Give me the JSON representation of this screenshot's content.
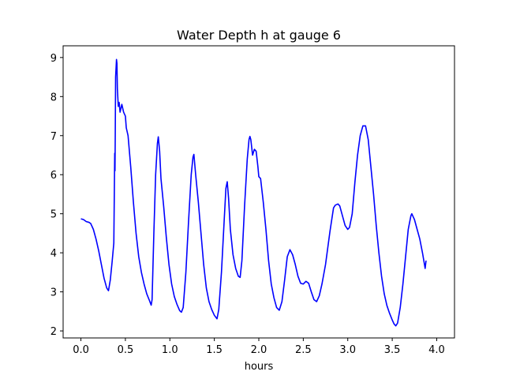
{
  "chart_data": {
    "type": "line",
    "title": "Water Depth h at gauge 6",
    "xlabel": "hours",
    "ylabel": "",
    "xlim": [
      -0.2,
      4.2
    ],
    "ylim": [
      1.82,
      9.3
    ],
    "xticks": [
      0.0,
      0.5,
      1.0,
      1.5,
      2.0,
      2.5,
      3.0,
      3.5,
      4.0
    ],
    "xtick_labels": [
      "0.0",
      "0.5",
      "1.0",
      "1.5",
      "2.0",
      "2.5",
      "3.0",
      "3.5",
      "4.0"
    ],
    "yticks": [
      2,
      3,
      4,
      5,
      6,
      7,
      8,
      9
    ],
    "ytick_labels": [
      "2",
      "3",
      "4",
      "5",
      "6",
      "7",
      "8",
      "9"
    ],
    "grid": false,
    "legend": "none",
    "series": [
      {
        "color": "#0000ff",
        "points": [
          [
            0.0,
            4.87
          ],
          [
            0.03,
            4.85
          ],
          [
            0.06,
            4.8
          ],
          [
            0.09,
            4.78
          ],
          [
            0.11,
            4.75
          ],
          [
            0.14,
            4.6
          ],
          [
            0.17,
            4.35
          ],
          [
            0.2,
            4.05
          ],
          [
            0.23,
            3.7
          ],
          [
            0.26,
            3.35
          ],
          [
            0.29,
            3.1
          ],
          [
            0.31,
            3.03
          ],
          [
            0.33,
            3.3
          ],
          [
            0.35,
            3.75
          ],
          [
            0.37,
            4.25
          ],
          [
            0.38,
            6.55
          ],
          [
            0.383,
            6.1
          ],
          [
            0.386,
            7.0
          ],
          [
            0.39,
            8.5
          ],
          [
            0.4,
            8.95
          ],
          [
            0.405,
            8.85
          ],
          [
            0.41,
            8.2
          ],
          [
            0.42,
            7.75
          ],
          [
            0.43,
            7.85
          ],
          [
            0.44,
            7.6
          ],
          [
            0.46,
            7.8
          ],
          [
            0.48,
            7.6
          ],
          [
            0.5,
            7.5
          ],
          [
            0.51,
            7.2
          ],
          [
            0.53,
            7.0
          ],
          [
            0.56,
            6.2
          ],
          [
            0.59,
            5.3
          ],
          [
            0.62,
            4.5
          ],
          [
            0.65,
            3.9
          ],
          [
            0.68,
            3.5
          ],
          [
            0.71,
            3.2
          ],
          [
            0.74,
            2.95
          ],
          [
            0.77,
            2.78
          ],
          [
            0.79,
            2.66
          ],
          [
            0.8,
            2.8
          ],
          [
            0.82,
            4.5
          ],
          [
            0.84,
            6.0
          ],
          [
            0.86,
            6.8
          ],
          [
            0.87,
            6.97
          ],
          [
            0.885,
            6.6
          ],
          [
            0.9,
            5.9
          ],
          [
            0.93,
            5.2
          ],
          [
            0.96,
            4.4
          ],
          [
            0.99,
            3.7
          ],
          [
            1.02,
            3.2
          ],
          [
            1.05,
            2.88
          ],
          [
            1.08,
            2.68
          ],
          [
            1.11,
            2.52
          ],
          [
            1.13,
            2.48
          ],
          [
            1.15,
            2.6
          ],
          [
            1.18,
            3.5
          ],
          [
            1.21,
            4.8
          ],
          [
            1.24,
            6.0
          ],
          [
            1.26,
            6.45
          ],
          [
            1.27,
            6.52
          ],
          [
            1.29,
            6.0
          ],
          [
            1.32,
            5.3
          ],
          [
            1.35,
            4.5
          ],
          [
            1.38,
            3.7
          ],
          [
            1.41,
            3.1
          ],
          [
            1.44,
            2.75
          ],
          [
            1.47,
            2.55
          ],
          [
            1.5,
            2.4
          ],
          [
            1.53,
            2.31
          ],
          [
            1.55,
            2.55
          ],
          [
            1.58,
            3.5
          ],
          [
            1.61,
            4.8
          ],
          [
            1.63,
            5.65
          ],
          [
            1.645,
            5.82
          ],
          [
            1.66,
            5.4
          ],
          [
            1.68,
            4.6
          ],
          [
            1.71,
            3.95
          ],
          [
            1.74,
            3.6
          ],
          [
            1.77,
            3.4
          ],
          [
            1.79,
            3.37
          ],
          [
            1.81,
            3.8
          ],
          [
            1.84,
            5.2
          ],
          [
            1.87,
            6.4
          ],
          [
            1.89,
            6.9
          ],
          [
            1.9,
            6.98
          ],
          [
            1.91,
            6.9
          ],
          [
            1.93,
            6.5
          ],
          [
            1.95,
            6.65
          ],
          [
            1.97,
            6.6
          ],
          [
            1.99,
            6.2
          ],
          [
            2.0,
            5.95
          ],
          [
            2.02,
            5.9
          ],
          [
            2.05,
            5.3
          ],
          [
            2.08,
            4.6
          ],
          [
            2.11,
            3.8
          ],
          [
            2.14,
            3.2
          ],
          [
            2.17,
            2.85
          ],
          [
            2.2,
            2.6
          ],
          [
            2.23,
            2.53
          ],
          [
            2.26,
            2.75
          ],
          [
            2.29,
            3.3
          ],
          [
            2.32,
            3.9
          ],
          [
            2.35,
            4.08
          ],
          [
            2.38,
            3.95
          ],
          [
            2.41,
            3.7
          ],
          [
            2.44,
            3.4
          ],
          [
            2.47,
            3.22
          ],
          [
            2.5,
            3.2
          ],
          [
            2.53,
            3.27
          ],
          [
            2.56,
            3.22
          ],
          [
            2.59,
            3.0
          ],
          [
            2.62,
            2.8
          ],
          [
            2.65,
            2.75
          ],
          [
            2.68,
            2.9
          ],
          [
            2.71,
            3.2
          ],
          [
            2.75,
            3.7
          ],
          [
            2.8,
            4.55
          ],
          [
            2.84,
            5.15
          ],
          [
            2.86,
            5.22
          ],
          [
            2.89,
            5.25
          ],
          [
            2.91,
            5.2
          ],
          [
            2.94,
            4.95
          ],
          [
            2.97,
            4.7
          ],
          [
            3.0,
            4.6
          ],
          [
            3.02,
            4.65
          ],
          [
            3.05,
            5.0
          ],
          [
            3.08,
            5.8
          ],
          [
            3.11,
            6.5
          ],
          [
            3.14,
            7.0
          ],
          [
            3.17,
            7.25
          ],
          [
            3.2,
            7.25
          ],
          [
            3.23,
            6.9
          ],
          [
            3.26,
            6.2
          ],
          [
            3.29,
            5.5
          ],
          [
            3.32,
            4.7
          ],
          [
            3.35,
            4.0
          ],
          [
            3.38,
            3.4
          ],
          [
            3.41,
            2.95
          ],
          [
            3.44,
            2.65
          ],
          [
            3.47,
            2.45
          ],
          [
            3.5,
            2.28
          ],
          [
            3.52,
            2.18
          ],
          [
            3.54,
            2.13
          ],
          [
            3.56,
            2.2
          ],
          [
            3.59,
            2.6
          ],
          [
            3.62,
            3.2
          ],
          [
            3.65,
            3.9
          ],
          [
            3.68,
            4.6
          ],
          [
            3.71,
            4.95
          ],
          [
            3.72,
            5.0
          ],
          [
            3.75,
            4.85
          ],
          [
            3.78,
            4.6
          ],
          [
            3.81,
            4.35
          ],
          [
            3.84,
            4.0
          ],
          [
            3.87,
            3.6
          ],
          [
            3.88,
            3.8
          ]
        ]
      }
    ]
  }
}
